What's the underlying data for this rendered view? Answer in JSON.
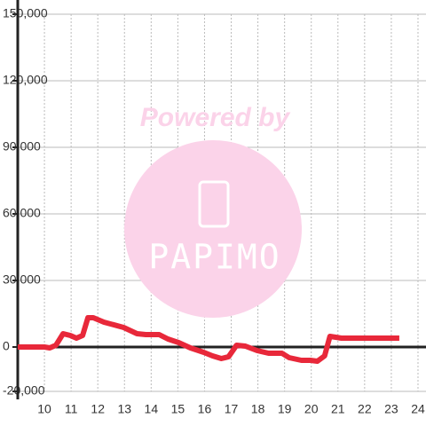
{
  "chart_data": {
    "type": "line",
    "watermark": "Powered by",
    "watermark_logo": "PAPIMO",
    "x": [
      9,
      10,
      10.2,
      10.43,
      10.7,
      10.97,
      11.2,
      11.43,
      11.63,
      11.83,
      12.23,
      12.97,
      13.47,
      13.8,
      14.3,
      14.63,
      15.03,
      15.47,
      15.97,
      16.3,
      16.63,
      16.9,
      17.2,
      17.53,
      17.97,
      18.4,
      18.9,
      19.17,
      19.63,
      19.97,
      20.23,
      20.5,
      20.7,
      21.13,
      22.3,
      23.3
    ],
    "series": [
      {
        "color": "#e8283a",
        "values": [
          0,
          0,
          -400,
          800,
          6000,
          5200,
          4000,
          5200,
          13200,
          13200,
          11200,
          8800,
          6000,
          5600,
          5600,
          3600,
          2000,
          -400,
          -2400,
          -4000,
          -5200,
          -4400,
          800,
          400,
          -1600,
          -2800,
          -2800,
          -4800,
          -6000,
          -6000,
          -6400,
          -4000,
          4800,
          4000,
          4000,
          4000
        ]
      }
    ],
    "xlim": [
      9,
      24.3
    ],
    "xticks": [
      10,
      11,
      12,
      13,
      14,
      15,
      16,
      17,
      18,
      19,
      20,
      21,
      22,
      23,
      24
    ],
    "ylim": [
      -20000,
      150000
    ],
    "yticks": [
      {
        "value": -20000,
        "label": "-20,000"
      },
      0,
      {
        "value": 30000,
        "label": "30,000"
      },
      {
        "value": 60000,
        "label": "60,000"
      },
      {
        "value": 90000,
        "label": "90,000"
      },
      {
        "value": 120000,
        "label": "120,000"
      },
      {
        "value": 150000,
        "label": "150,000"
      }
    ],
    "grid": true
  }
}
